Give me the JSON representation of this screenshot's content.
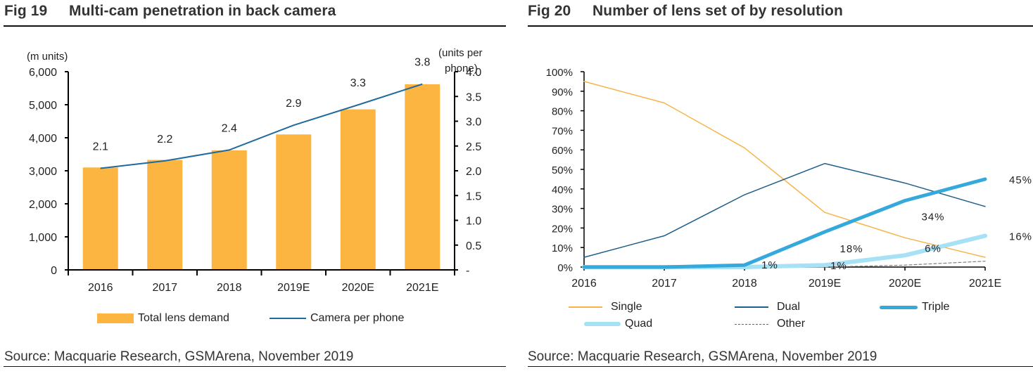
{
  "chart_data": [
    {
      "id": "fig19",
      "type": "bar+line",
      "figure_label": "Fig 19",
      "title": "Multi-cam penetration in back camera",
      "categories": [
        "2016",
        "2017",
        "2018",
        "2019E",
        "2020E",
        "2021E"
      ],
      "series": [
        {
          "name": "Total lens demand",
          "type": "bar",
          "axis": "left",
          "color": "#FBB540",
          "values": [
            3100,
            3330,
            3620,
            4100,
            4860,
            5620
          ]
        },
        {
          "name": "Camera per phone",
          "type": "line",
          "axis": "right",
          "color": "#1F6AA0",
          "values": [
            2.05,
            2.2,
            2.42,
            2.92,
            3.33,
            3.75
          ],
          "labels": [
            "2.1",
            "2.2",
            "2.4",
            "2.9",
            "3.3",
            "3.8"
          ]
        }
      ],
      "left_axis": {
        "label": "(m units)",
        "ylim": [
          0,
          6000
        ],
        "ticks": [
          0,
          1000,
          2000,
          3000,
          4000,
          5000,
          6000
        ],
        "tick_labels": [
          "0",
          "1,000",
          "2,000",
          "3,000",
          "4,000",
          "5,000",
          "6,000"
        ]
      },
      "right_axis": {
        "label_line1": "(units per",
        "label_line2": "phone)",
        "ylim": [
          0,
          4.0
        ],
        "ticks": [
          0,
          0.5,
          1.0,
          1.5,
          2.0,
          2.5,
          3.0,
          3.5,
          4.0
        ],
        "tick_labels": [
          "-",
          "0.5",
          "1.0",
          "1.5",
          "2.0",
          "2.5",
          "3.0",
          "3.5",
          "4.0"
        ]
      },
      "grid": false,
      "legend": "bottom",
      "source": "Source: Macquarie Research, GSMArena, November 2019"
    },
    {
      "id": "fig20",
      "type": "line",
      "figure_label": "Fig 20",
      "title": "Number of lens set of by resolution",
      "categories": [
        "2016",
        "2017",
        "2018",
        "2019E",
        "2020E",
        "2021E"
      ],
      "series": [
        {
          "name": "Single",
          "color": "#F6B44A",
          "style": "thin",
          "values": [
            95,
            84,
            61,
            28,
            15,
            5
          ]
        },
        {
          "name": "Dual",
          "color": "#1F5F8B",
          "style": "thin",
          "values": [
            5,
            16,
            37,
            53,
            43,
            31
          ]
        },
        {
          "name": "Triple",
          "color": "#35A9DB",
          "style": "thick",
          "values": [
            0,
            0,
            1,
            18,
            34,
            45
          ]
        },
        {
          "name": "Quad",
          "color": "#A6E1F5",
          "style": "thick",
          "values": [
            0,
            0,
            0,
            1,
            6,
            16
          ]
        },
        {
          "name": "Other",
          "color": "#808080",
          "style": "dashed",
          "values": [
            0,
            0,
            0,
            0,
            1,
            3
          ]
        }
      ],
      "annotations": [
        {
          "text": "1%",
          "series": "Triple",
          "category": "2018"
        },
        {
          "text": "18%",
          "series": "Triple",
          "category": "2019E"
        },
        {
          "text": "34%",
          "series": "Triple",
          "category": "2020E"
        },
        {
          "text": "45%",
          "series": "Triple",
          "category": "2021E"
        },
        {
          "text": "1%",
          "series": "Quad",
          "category": "2019E"
        },
        {
          "text": "6%",
          "series": "Quad",
          "category": "2020E"
        },
        {
          "text": "16%",
          "series": "Quad",
          "category": "2021E"
        }
      ],
      "ylim": [
        0,
        100
      ],
      "yticks": [
        0,
        10,
        20,
        30,
        40,
        50,
        60,
        70,
        80,
        90,
        100
      ],
      "ytick_labels": [
        "0%",
        "10%",
        "20%",
        "30%",
        "40%",
        "50%",
        "60%",
        "70%",
        "80%",
        "90%",
        "100%"
      ],
      "xlabel": "",
      "ylabel": "",
      "grid": false,
      "legend": "bottom",
      "source": "Source: Macquarie Research, GSMArena, November 2019"
    }
  ]
}
